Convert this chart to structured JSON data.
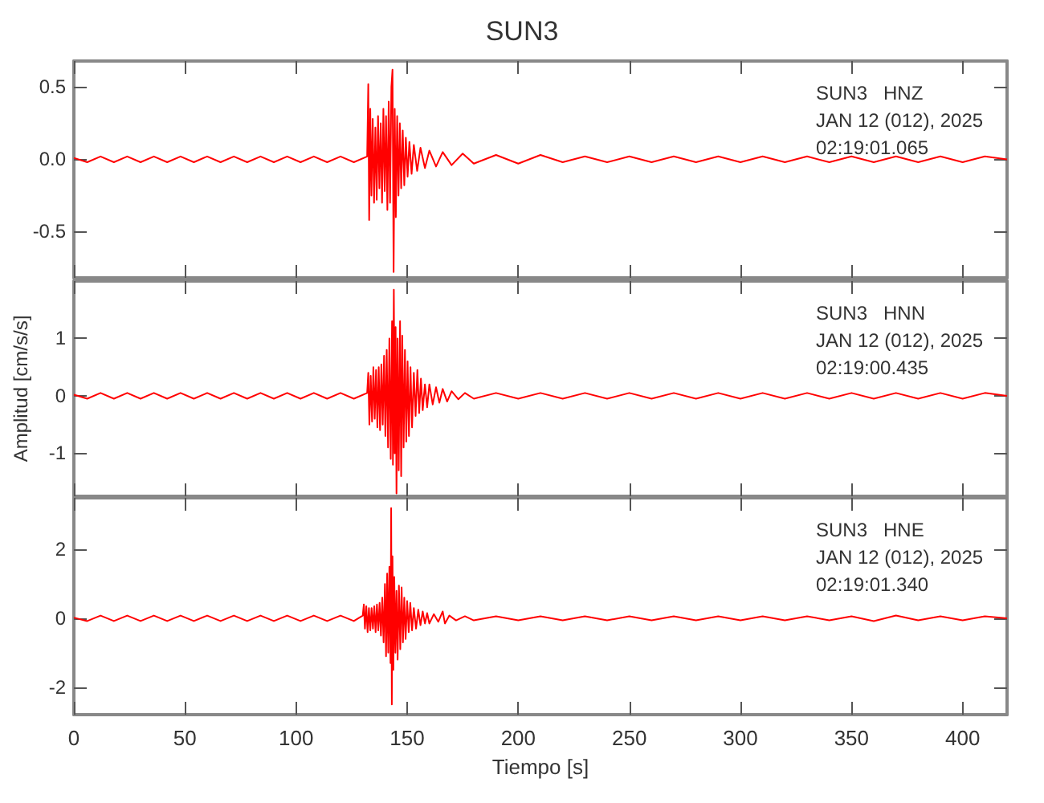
{
  "chart_data": [
    {
      "type": "line",
      "title": "SUN3",
      "annotations": [
        "SUN3   HNZ",
        "JAN 12 (012), 2025",
        "02:19:01.065"
      ],
      "xlim": [
        0,
        420
      ],
      "xticks": [
        0,
        50,
        100,
        150,
        200,
        250,
        300,
        350,
        400
      ],
      "ylim": [
        -0.82,
        0.68
      ],
      "yticks": [
        -0.5,
        {
          "value": 0,
          "label": "0.0"
        },
        0.5
      ],
      "tick_labels": "y",
      "grid": false,
      "marker": "none",
      "line_style": "solid",
      "series": [
        {
          "color": "#ff0000",
          "x": [
            0,
            6,
            12,
            18,
            24,
            30,
            36,
            42,
            48,
            54,
            60,
            66,
            72,
            78,
            84,
            90,
            96,
            102,
            108,
            114,
            120,
            126,
            132,
            132.5,
            132.9,
            133.4,
            133.9,
            134.5,
            135.1,
            135.7,
            136.3,
            136.9,
            137.5,
            138.1,
            138.7,
            139.3,
            139.9,
            140.5,
            141.1,
            141.7,
            142.3,
            142.9,
            143.4,
            143.9,
            144.4,
            144.9,
            145.5,
            146.1,
            146.7,
            147.3,
            148,
            148.7,
            149.4,
            150.2,
            151,
            152,
            153,
            154.5,
            156,
            158,
            160,
            163,
            166,
            170,
            175,
            180,
            190,
            200,
            210,
            220,
            230,
            240,
            250,
            260,
            270,
            280,
            290,
            300,
            310,
            320,
            330,
            340,
            350,
            360,
            370,
            380,
            390,
            400,
            410,
            420
          ],
          "values": [
            0.01,
            -0.02,
            0.02,
            -0.02,
            0.02,
            -0.02,
            0.02,
            -0.02,
            0.02,
            -0.02,
            0.02,
            -0.02,
            0.02,
            -0.02,
            0.02,
            -0.02,
            0.02,
            -0.02,
            0.02,
            -0.02,
            0.02,
            -0.02,
            0.02,
            0.52,
            -0.42,
            0.35,
            -0.25,
            0.28,
            -0.3,
            0.22,
            -0.28,
            0.3,
            -0.2,
            0.25,
            -0.3,
            0.35,
            -0.22,
            0.3,
            -0.35,
            0.4,
            -0.3,
            0.5,
            0.62,
            -0.78,
            0.35,
            -0.4,
            0.3,
            -0.25,
            0.25,
            -0.2,
            0.2,
            -0.18,
            0.15,
            -0.12,
            0.12,
            -0.1,
            0.1,
            -0.08,
            0.08,
            -0.06,
            0.06,
            -0.05,
            0.05,
            -0.04,
            0.04,
            -0.03,
            0.03,
            -0.03,
            0.03,
            -0.02,
            0.02,
            -0.02,
            0.02,
            -0.02,
            0.02,
            -0.02,
            0.02,
            -0.02,
            0.02,
            -0.02,
            0.02,
            -0.02,
            0.02,
            -0.02,
            0.02,
            -0.02,
            0.02,
            -0.02,
            0.02,
            0
          ]
        }
      ]
    },
    {
      "type": "line",
      "ylabel": "Amplitud [cm/s/s]",
      "annotations": [
        "SUN3   HNN",
        "JAN 12 (012), 2025",
        "02:19:00.435"
      ],
      "xlim": [
        0,
        420
      ],
      "xticks": [
        0,
        50,
        100,
        150,
        200,
        250,
        300,
        350,
        400
      ],
      "ylim": [
        -1.75,
        2.0
      ],
      "yticks": [
        -1,
        0,
        1
      ],
      "tick_labels": "y",
      "grid": false,
      "marker": "none",
      "line_style": "solid",
      "series": [
        {
          "color": "#ff0000",
          "x": [
            0,
            6,
            12,
            18,
            24,
            30,
            36,
            42,
            48,
            54,
            60,
            66,
            72,
            78,
            84,
            90,
            96,
            102,
            108,
            114,
            120,
            126,
            132,
            132.5,
            133,
            133.6,
            134.2,
            134.8,
            135.4,
            136,
            136.6,
            137.2,
            137.8,
            138.4,
            139,
            139.6,
            140.2,
            140.8,
            141.4,
            142,
            142.6,
            143.2,
            143.6,
            144,
            144.4,
            144.8,
            145.2,
            145.7,
            146.2,
            146.8,
            147.3,
            147.8,
            148.4,
            149,
            149.6,
            150.2,
            150.8,
            151.5,
            152.2,
            153,
            153.8,
            154.6,
            155.4,
            156.2,
            157,
            158,
            159,
            160,
            161.5,
            163,
            164.5,
            166,
            168,
            170,
            173,
            176,
            180,
            190,
            200,
            210,
            220,
            230,
            240,
            250,
            260,
            270,
            280,
            290,
            300,
            310,
            320,
            330,
            340,
            350,
            360,
            370,
            380,
            390,
            400,
            410,
            420
          ],
          "values": [
            0.02,
            -0.05,
            0.05,
            -0.05,
            0.05,
            -0.05,
            0.05,
            -0.05,
            0.05,
            -0.05,
            0.05,
            -0.05,
            0.05,
            -0.05,
            0.05,
            -0.05,
            0.05,
            -0.05,
            0.05,
            -0.05,
            0.05,
            -0.05,
            0.05,
            0.4,
            -0.5,
            0.35,
            -0.45,
            0.5,
            -0.4,
            0.45,
            -0.55,
            0.5,
            -0.6,
            0.55,
            -0.5,
            0.7,
            -0.7,
            0.8,
            -0.9,
            1.0,
            -1.1,
            1.3,
            -1.2,
            1.85,
            -1.0,
            1.2,
            -1.7,
            1.0,
            -1.3,
            1.3,
            -1.4,
            1.05,
            -0.9,
            0.8,
            -0.8,
            0.6,
            -0.7,
            0.5,
            -0.55,
            0.4,
            -0.35,
            0.45,
            -0.3,
            0.3,
            -0.25,
            0.2,
            -0.2,
            0.2,
            -0.15,
            0.15,
            -0.12,
            0.12,
            -0.1,
            0.08,
            -0.06,
            0.05,
            -0.05,
            0.05,
            -0.05,
            0.05,
            -0.05,
            0.05,
            -0.05,
            0.05,
            -0.05,
            0.05,
            -0.05,
            0.05,
            -0.05,
            0.05,
            -0.05,
            0.05,
            -0.05,
            0.05,
            -0.05,
            0.05,
            -0.05,
            0.05,
            -0.05,
            0.05,
            0
          ]
        }
      ]
    },
    {
      "type": "line",
      "xlabel": "Tiempo [s]",
      "annotations": [
        "SUN3   HNE",
        "JAN 12 (012), 2025",
        "02:19:01.340"
      ],
      "xlim": [
        0,
        420
      ],
      "xticks": [
        0,
        50,
        100,
        150,
        200,
        250,
        300,
        350,
        400
      ],
      "ylim": [
        -2.8,
        3.5
      ],
      "yticks": [
        -2,
        0,
        2
      ],
      "grid": false,
      "marker": "none",
      "line_style": "solid",
      "series": [
        {
          "color": "#ff0000",
          "x": [
            0,
            6,
            12,
            18,
            24,
            30,
            36,
            42,
            48,
            54,
            60,
            66,
            72,
            78,
            84,
            90,
            96,
            102,
            108,
            114,
            120,
            126,
            130,
            130.5,
            131,
            131.6,
            132.2,
            132.8,
            133.4,
            134,
            134.6,
            135.2,
            135.8,
            136.4,
            137,
            137.6,
            138.2,
            138.8,
            139.4,
            140,
            140.5,
            141,
            141.5,
            142,
            142.5,
            142.8,
            143.1,
            143.4,
            143.8,
            144.2,
            144.7,
            145.2,
            145.7,
            146.3,
            146.9,
            147.5,
            148.1,
            148.7,
            149.3,
            150,
            150.7,
            151.4,
            152.2,
            153,
            154,
            155,
            156,
            157,
            158,
            159,
            160,
            162,
            164,
            166,
            167,
            169,
            172,
            176,
            180,
            190,
            200,
            210,
            220,
            230,
            240,
            250,
            260,
            270,
            280,
            290,
            300,
            310,
            320,
            330,
            340,
            350,
            360,
            370,
            380,
            390,
            400,
            410,
            420
          ],
          "values": [
            0.02,
            -0.08,
            0.08,
            -0.08,
            0.08,
            -0.08,
            0.08,
            -0.08,
            0.08,
            -0.08,
            0.08,
            -0.08,
            0.08,
            -0.08,
            0.08,
            -0.08,
            0.08,
            -0.08,
            0.08,
            -0.08,
            0.08,
            -0.08,
            0.08,
            0.4,
            -0.3,
            0.35,
            -0.4,
            0.3,
            -0.35,
            0.3,
            -0.3,
            0.35,
            -0.4,
            0.4,
            -0.35,
            0.45,
            -0.5,
            0.6,
            -0.7,
            1.0,
            -1.1,
            1.3,
            -1.0,
            1.5,
            -1.3,
            3.2,
            -2.5,
            1.8,
            -1.5,
            1.2,
            -1.0,
            0.8,
            -1.2,
            0.95,
            -0.9,
            0.9,
            -0.7,
            0.6,
            -0.6,
            0.5,
            -0.4,
            0.45,
            -0.35,
            0.3,
            -0.3,
            0.25,
            -0.2,
            0.2,
            -0.15,
            0.15,
            -0.15,
            0.12,
            -0.1,
            0.2,
            -0.15,
            0.08,
            -0.06,
            0.06,
            -0.06,
            0.06,
            -0.06,
            0.06,
            -0.06,
            0.06,
            -0.06,
            0.06,
            -0.06,
            0.06,
            -0.06,
            0.06,
            -0.06,
            0.06,
            -0.06,
            0.06,
            -0.06,
            0.06,
            -0.08,
            0.08,
            -0.06,
            0.06,
            -0.06,
            0.06,
            0
          ]
        }
      ]
    }
  ]
}
